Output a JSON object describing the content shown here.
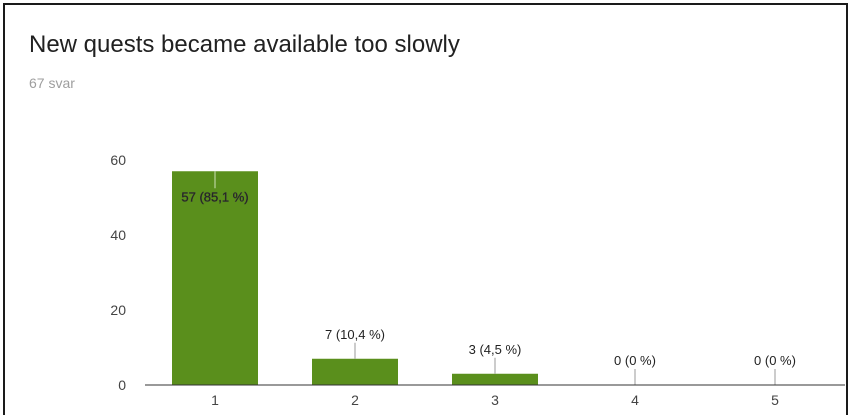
{
  "header": {
    "title": "New quests became available too slowly",
    "response_count": "67 svar"
  },
  "colors": {
    "bar": "#5a8f1c",
    "axis": "#333333",
    "label_leader": "#999999"
  },
  "chart_data": {
    "type": "bar",
    "title": "New quests became available too slowly",
    "xlabel": "",
    "ylabel": "",
    "categories": [
      "1",
      "2",
      "3",
      "4",
      "5"
    ],
    "values": [
      57,
      7,
      3,
      0,
      0
    ],
    "data_labels": [
      "57 (85,1 %)",
      "7 (10,4 %)",
      "3 (4,5 %)",
      "0 (0 %)",
      "0 (0 %)"
    ],
    "y_ticks": [
      "0",
      "20",
      "40",
      "60"
    ],
    "ylim": [
      0,
      60
    ],
    "grid": false,
    "legend": "none"
  }
}
